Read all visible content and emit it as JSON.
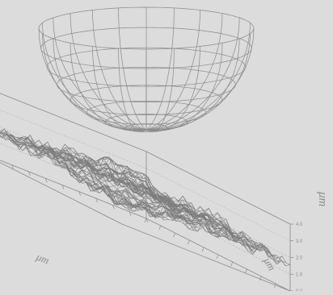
{
  "figure": {
    "background_color": "#dcdcdc",
    "line_color": "#8a8a8a",
    "surface_color": "#7d7d7d"
  },
  "hemisphere": {
    "kind": "wireframe half-sphere (cup), opening upward",
    "meridians": 24,
    "parallels": 8
  },
  "surface_plot": {
    "kind": "3D wireframe surface (rough topography)"
  },
  "axes": {
    "z_unit": "μm",
    "x_unit": "μm",
    "y_unit": "μm",
    "z_ticks": [
      "0.0",
      "1.0",
      "2.0",
      "3.0",
      "4.0"
    ]
  }
}
